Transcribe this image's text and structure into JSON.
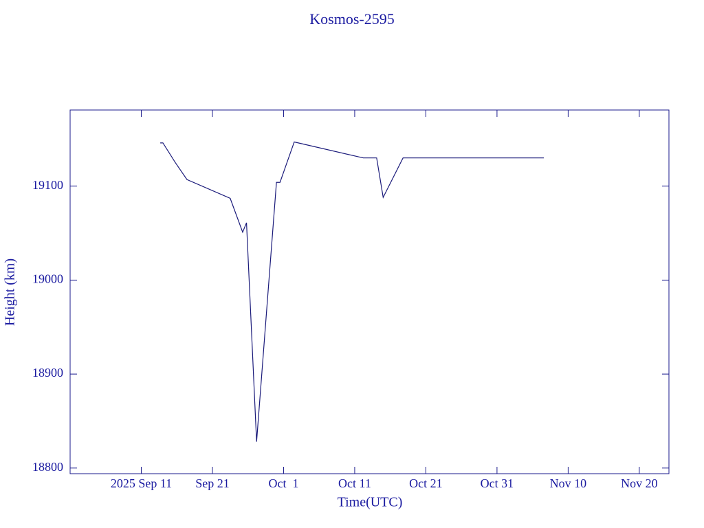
{
  "chart_data": {
    "type": "line",
    "title": "Kosmos-2595",
    "x_label": "Time(UTC)",
    "y_label": "Height (km)",
    "color": "#1a1a7a",
    "x": [
      "2025-09-13T16:00",
      "2025-09-14T01:00",
      "2025-09-15T19:00",
      "2025-09-17T10:00",
      "2025-09-23T12:00",
      "2025-09-25T06:00",
      "2025-09-25T19:00",
      "2025-09-27T05:00",
      "2025-09-30T00:00",
      "2025-09-30T12:00",
      "2025-10-02T12:00",
      "2025-10-12T05:00",
      "2025-10-14T02:00",
      "2025-10-15T00:00",
      "2025-10-17T19:00",
      "2025-11-06T14:00"
    ],
    "values": [
      19146,
      19146,
      19125,
      19107,
      19087,
      19051,
      19061,
      18828,
      19104,
      19104,
      19147,
      19130,
      19130,
      19088,
      19130,
      19130
    ],
    "xlim": [
      "2025-09-01T00:00",
      "2025-11-24T04:00"
    ],
    "xticks": [
      {
        "value": "2025-09-11T00:00",
        "label": "2025 Sep 11"
      },
      {
        "value": "2025-09-21T00:00",
        "label": "Sep 21"
      },
      {
        "value": "2025-10-01T00:00",
        "label": "Oct  1"
      },
      {
        "value": "2025-10-11T00:00",
        "label": "Oct 11"
      },
      {
        "value": "2025-10-21T00:00",
        "label": "Oct 21"
      },
      {
        "value": "2025-10-31T00:00",
        "label": "Oct 31"
      },
      {
        "value": "2025-11-10T00:00",
        "label": "Nov 10"
      },
      {
        "value": "2025-11-20T00:00",
        "label": "Nov 20"
      }
    ],
    "ylim": [
      18794,
      19181
    ],
    "yticks": [
      18800,
      18900,
      19000,
      19100
    ]
  }
}
